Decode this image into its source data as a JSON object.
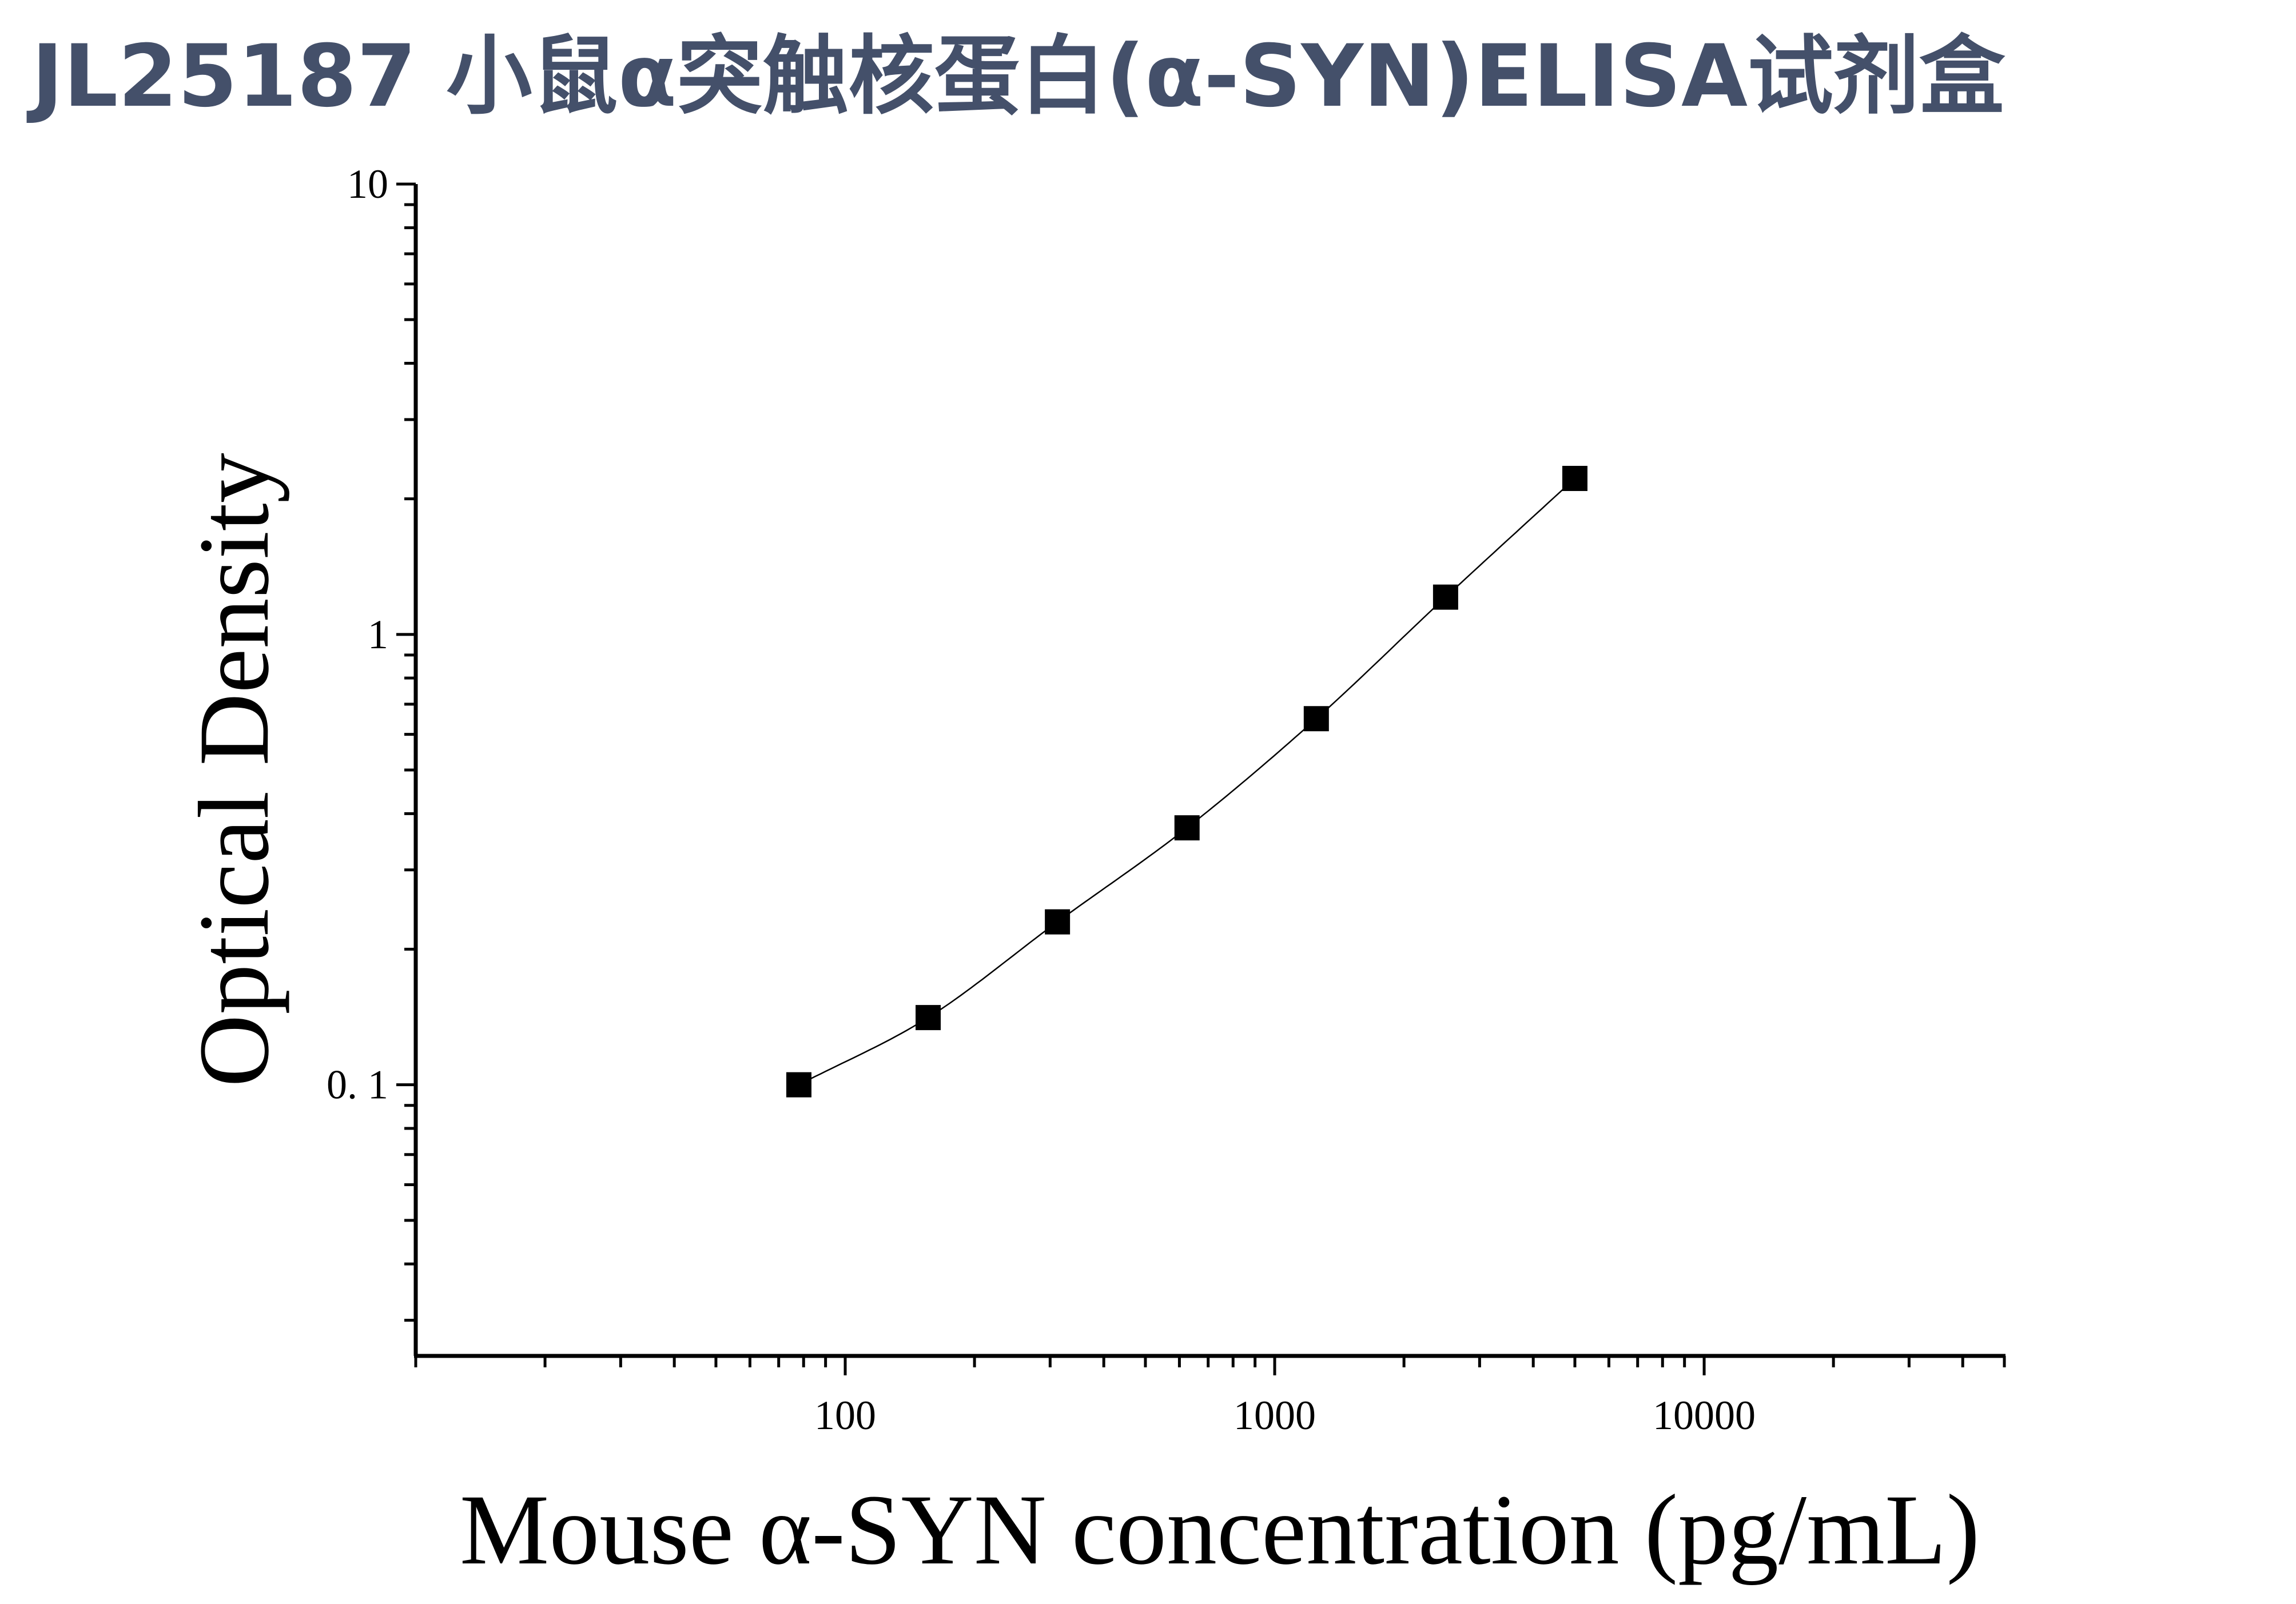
{
  "title": "JL25187 小鼠α突触核蛋白(α-SYN)ELISA试剂盒",
  "chart_data": {
    "type": "scatter",
    "xlabel": "Mouse α-SYN concentration (pg/mL)",
    "ylabel": "Optical Density",
    "x_scale": "log",
    "y_scale": "log",
    "xlim": [
      10,
      50000
    ],
    "ylim": [
      0.025,
      10
    ],
    "x_ticks": [
      100,
      1000,
      10000
    ],
    "x_tick_labels": [
      "100",
      "1000",
      "10000"
    ],
    "y_ticks": [
      0.1,
      1,
      10
    ],
    "y_tick_labels": [
      "0. 1",
      "1",
      "10"
    ],
    "grid": false,
    "legend": "none",
    "marker": "square",
    "fit_line": true,
    "series": [
      {
        "x": [
          78,
          156,
          312,
          625,
          1250,
          2500,
          5000
        ],
        "y": [
          0.1,
          0.141,
          0.23,
          0.372,
          0.65,
          1.21,
          2.22
        ]
      }
    ],
    "colors": {
      "title": "#44506a",
      "axes": "#000000",
      "markers": "#000000"
    }
  }
}
